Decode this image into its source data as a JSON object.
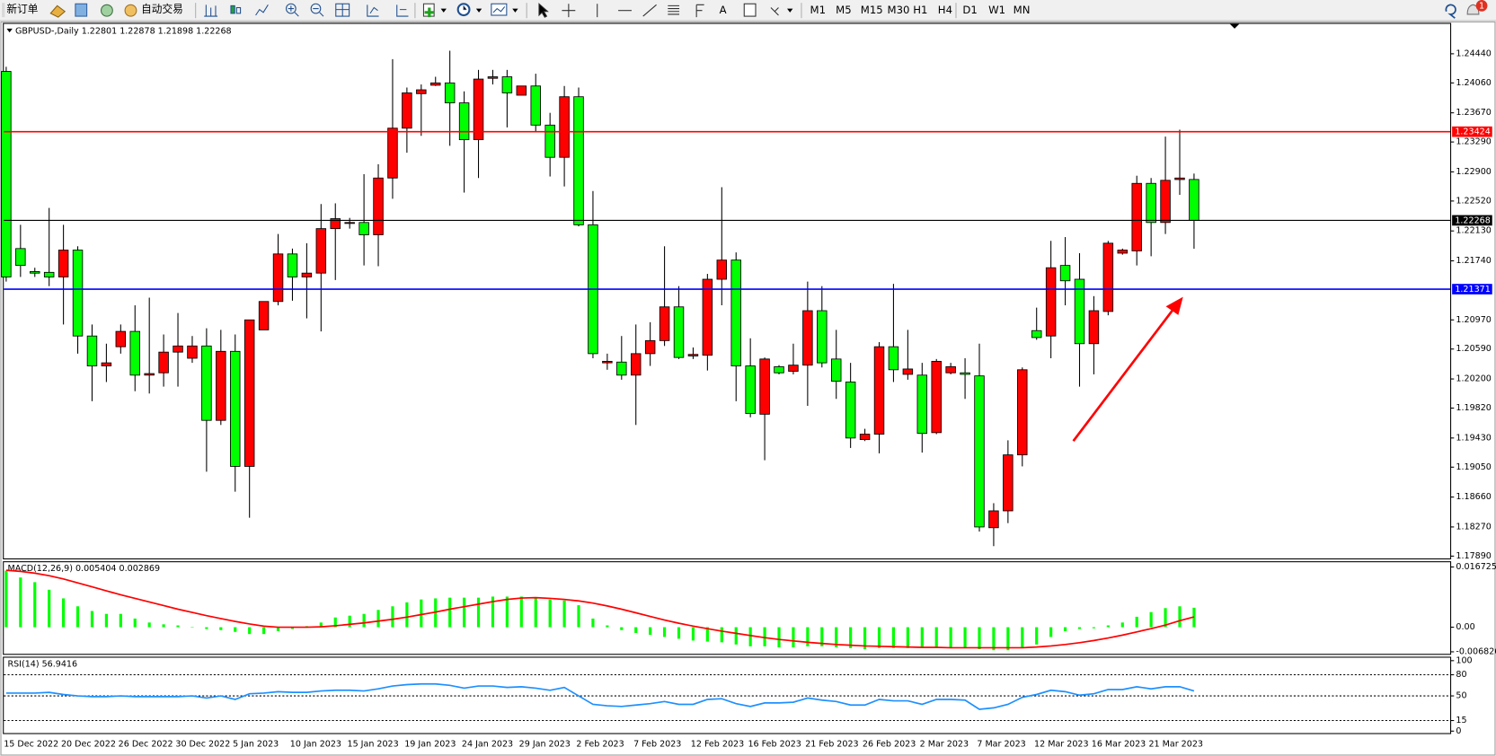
{
  "toolbar": {
    "new_order": "新订单",
    "auto_trading": "自动交易",
    "timeframes": [
      "M1",
      "M5",
      "M15",
      "M30",
      "H1",
      "H4",
      "D1",
      "W1",
      "MN"
    ],
    "notifications": "1"
  },
  "chart_data": [
    {
      "type": "candlestick",
      "title": "GBPUSD-,Daily  1.22801 1.22878 1.21898 1.22268",
      "categories": [
        "15 Dec 2022",
        null,
        null,
        null,
        "20 Dec 2022",
        null,
        null,
        null,
        "26 Dec 2022",
        null,
        null,
        null,
        "30 Dec 2022",
        null,
        null,
        null,
        "5 Jan 2023",
        null,
        null,
        null,
        "10 Jan 2023",
        null,
        null,
        null,
        "15 Jan 2023",
        null,
        null,
        null,
        "19 Jan 2023",
        null,
        null,
        null,
        "24 Jan 2023",
        null,
        null,
        null,
        "29 Jan 2023",
        null,
        null,
        null,
        "2 Feb 2023",
        null,
        null,
        null,
        "7 Feb 2023",
        null,
        null,
        null,
        "12 Feb 2023",
        null,
        null,
        null,
        "16 Feb 2023",
        null,
        null,
        null,
        "21 Feb 2023",
        null,
        null,
        null,
        "26 Feb 2023",
        null,
        null,
        null,
        "2 Mar 2023",
        null,
        null,
        null,
        "7 Mar 2023",
        null,
        null,
        null,
        "12 Mar 2023",
        null,
        null,
        null,
        "16 Mar 2023",
        null,
        null,
        null,
        "21 Mar 2023",
        null,
        null,
        null
      ],
      "open": [
        1.2421,
        1.219,
        1.216,
        1.2159,
        1.2153,
        1.2188,
        1.2076,
        1.2037,
        1.2062,
        1.2082,
        1.2025,
        1.2028,
        1.2055,
        1.2047,
        1.2063,
        1.1966,
        1.2056,
        1.1906,
        1.2084,
        1.2121,
        1.2183,
        1.2153,
        1.2158,
        1.2216,
        1.2223,
        1.2224,
        1.2208,
        1.2282,
        1.2347,
        1.2392,
        1.2403,
        1.2406,
        1.238,
        1.2332,
        1.2412,
        1.2414,
        1.239,
        1.2402,
        1.2351,
        1.2309,
        1.2388,
        1.2221,
        1.2041,
        1.2042,
        1.2025,
        1.2053,
        1.207,
        1.2114,
        1.205,
        1.2051,
        1.215,
        1.2175,
        1.2037,
        1.1974,
        1.2036,
        1.203,
        1.2038,
        1.2109,
        1.2046,
        1.2016,
        1.1941,
        1.1948,
        1.2062,
        1.2026,
        1.2025,
        1.195,
        1.2028,
        1.2028,
        1.2024,
        1.1826,
        1.1848,
        1.1921,
        1.2083,
        1.2076,
        1.2168,
        1.215,
        1.2066,
        1.2108,
        1.2184,
        1.2187,
        1.2275,
        1.2224,
        1.228,
        1.22801
      ],
      "high": [
        1.2427,
        1.2221,
        1.2165,
        1.2243,
        1.2221,
        1.2193,
        1.2091,
        1.2066,
        1.2091,
        1.2116,
        1.2126,
        1.2078,
        1.2106,
        1.2076,
        1.2086,
        1.2084,
        1.2078,
        1.2097,
        1.2121,
        1.2209,
        1.219,
        1.2197,
        1.2248,
        1.2249,
        1.223,
        1.2287,
        1.23,
        1.2437,
        1.24,
        1.2404,
        1.2414,
        1.2448,
        1.2395,
        1.2423,
        1.2423,
        1.2423,
        1.2402,
        1.2418,
        1.2367,
        1.2402,
        1.24,
        1.2265,
        1.2053,
        1.2076,
        1.2091,
        1.2094,
        1.2193,
        1.2141,
        1.2061,
        1.2157,
        1.227,
        1.2185,
        1.2073,
        1.2048,
        1.2038,
        1.2066,
        1.2147,
        1.2141,
        1.2084,
        1.2041,
        1.1955,
        1.2068,
        1.2144,
        1.2084,
        1.2041,
        1.2046,
        1.2041,
        1.2047,
        1.2066,
        1.1858,
        1.194,
        1.2035,
        1.2113,
        1.22,
        1.2205,
        1.2184,
        1.2128,
        1.22,
        1.219,
        1.2285,
        1.2282,
        1.2336,
        1.2345,
        1.22878
      ],
      "low": [
        1.2147,
        1.2153,
        1.2153,
        1.2141,
        1.2091,
        1.2053,
        1.1991,
        1.2016,
        1.2053,
        1.2004,
        1.2001,
        1.201,
        1.201,
        1.2041,
        1.1899,
        1.196,
        1.1873,
        1.1839,
        1.2084,
        1.2116,
        1.2122,
        1.2099,
        1.2082,
        1.2149,
        1.2216,
        1.2168,
        1.2167,
        1.2255,
        1.2315,
        1.2337,
        1.2402,
        1.2324,
        1.2263,
        1.2282,
        1.2404,
        1.2348,
        1.239,
        1.2343,
        1.2284,
        1.2271,
        1.2219,
        1.2047,
        1.2032,
        1.2019,
        1.196,
        1.2037,
        1.2063,
        1.2046,
        1.2046,
        1.2031,
        1.2116,
        1.1991,
        1.197,
        1.1914,
        1.2026,
        1.2026,
        1.1985,
        1.2035,
        1.1994,
        1.193,
        1.1939,
        1.1923,
        1.2016,
        1.2019,
        1.1924,
        1.1948,
        1.2026,
        1.1994,
        1.1821,
        1.1802,
        1.1832,
        1.1906,
        1.2071,
        1.2047,
        1.2116,
        1.201,
        1.2026,
        1.2103,
        1.2182,
        1.2168,
        1.218,
        1.2209,
        1.226,
        1.21898
      ],
      "close": [
        1.2153,
        1.2168,
        1.2158,
        1.2153,
        1.2188,
        1.2076,
        1.2037,
        1.2041,
        1.2082,
        1.2025,
        1.2027,
        1.2055,
        1.2063,
        1.2063,
        1.1966,
        1.2056,
        1.1906,
        1.2097,
        1.2121,
        1.2183,
        1.2153,
        1.2158,
        1.2216,
        1.2229,
        1.2224,
        1.2208,
        1.2282,
        1.2347,
        1.2393,
        1.2397,
        1.2406,
        1.238,
        1.2332,
        1.2411,
        1.2414,
        1.2393,
        1.2402,
        1.2351,
        1.2309,
        1.2388,
        1.2221,
        1.2053,
        1.2043,
        1.2025,
        1.2053,
        1.207,
        1.2114,
        1.2048,
        1.2052,
        1.215,
        1.2175,
        1.2037,
        1.1975,
        1.2046,
        1.2028,
        1.2038,
        1.2109,
        1.2041,
        1.2017,
        1.1943,
        1.1948,
        1.2062,
        1.2032,
        1.2033,
        1.1949,
        1.2043,
        1.2036,
        1.2026,
        1.1827,
        1.1848,
        1.1921,
        1.2032,
        1.2074,
        1.2165,
        1.2148,
        1.2066,
        1.2109,
        1.2197,
        1.2188,
        1.2275,
        1.2224,
        1.2279,
        1.2282,
        1.22268
      ],
      "bull_color": "#ff0000",
      "bear_color": "#00ff00",
      "wick_color": "#000000",
      "ylim": [
        1.1786,
        1.2483
      ],
      "yticks": [
        {
          "value": 1.2444,
          "label": "1.24440"
        },
        {
          "value": 1.2406,
          "label": "1.24060"
        },
        {
          "value": 1.2367,
          "label": "1.23670"
        },
        {
          "value": 1.2329,
          "label": "1.23290"
        },
        {
          "value": 1.229,
          "label": "1.22900"
        },
        {
          "value": 1.2252,
          "label": "1.22520"
        },
        {
          "value": 1.2213,
          "label": "1.22130"
        },
        {
          "value": 1.2174,
          "label": "1.21740"
        },
        {
          "value": 1.2097,
          "label": "1.20970"
        },
        {
          "value": 1.2059,
          "label": "1.20590"
        },
        {
          "value": 1.202,
          "label": "1.20200"
        },
        {
          "value": 1.1982,
          "label": "1.19820"
        },
        {
          "value": 1.1943,
          "label": "1.19430"
        },
        {
          "value": 1.1905,
          "label": "1.19050"
        },
        {
          "value": 1.1866,
          "label": "1.18660"
        },
        {
          "value": 1.1827,
          "label": "1.18270"
        },
        {
          "value": 1.1789,
          "label": "1.17890"
        }
      ],
      "hlines": [
        {
          "value": 1.23424,
          "color": "#ff0000"
        },
        {
          "value": 1.22268,
          "color": "#000000"
        },
        {
          "value": 1.21371,
          "color": "#0000ff"
        }
      ]
    },
    {
      "type": "bar",
      "title": "MACD(12,26,9) 0.005404 0.002869",
      "series": [
        {
          "color": "#00ff00",
          "values": [
            0.0157,
            0.0138,
            0.0125,
            0.0104,
            0.008,
            0.0058,
            0.0045,
            0.0037,
            0.0037,
            0.0024,
            0.0013,
            0.0008,
            0.0005,
            0,
            -0.0005,
            -0.0008,
            -0.0013,
            -0.0019,
            -0.0019,
            -0.0011,
            -0.0005,
            0.0003,
            0.0013,
            0.0027,
            0.0032,
            0.0037,
            0.0048,
            0.0058,
            0.0069,
            0.0077,
            0.008,
            0.0082,
            0.0082,
            0.0082,
            0.0085,
            0.0085,
            0.0085,
            0.0082,
            0.0077,
            0.0074,
            0.0061,
            0.0024,
            0.0005,
            -0.0008,
            -0.0016,
            -0.0021,
            -0.0027,
            -0.0032,
            -0.0037,
            -0.004,
            -0.0042,
            -0.0048,
            -0.0053,
            -0.0053,
            -0.0056,
            -0.0056,
            -0.0053,
            -0.0053,
            -0.0056,
            -0.0058,
            -0.0061,
            -0.0058,
            -0.0058,
            -0.0058,
            -0.0058,
            -0.0058,
            -0.0058,
            -0.0058,
            -0.0061,
            -0.0064,
            -0.0064,
            -0.0058,
            -0.0048,
            -0.0027,
            -0.0011,
            -0.0005,
            -0.0003,
            0.0005,
            0.0013,
            0.0029,
            0.0042,
            0.0053,
            0.0058,
            0.005404
          ]
        },
        {
          "type": "line",
          "color": "#ff0000",
          "values": [
            0.0158,
            0.0155,
            0.015,
            0.0143,
            0.0134,
            0.0123,
            0.0112,
            0.0101,
            0.009,
            0.008,
            0.007,
            0.006,
            0.005,
            0.0041,
            0.0032,
            0.0024,
            0.0016,
            0.0009,
            0.0003,
            0,
            0,
            0,
            0.0001,
            0.0004,
            0.0008,
            0.0012,
            0.0017,
            0.0022,
            0.0028,
            0.0035,
            0.0042,
            0.005,
            0.0057,
            0.0064,
            0.0071,
            0.0077,
            0.0081,
            0.0082,
            0.008,
            0.0077,
            0.0073,
            0.0067,
            0.0059,
            0.005,
            0.004,
            0.003,
            0.002,
            0.0011,
            0.0003,
            -0.0004,
            -0.0011,
            -0.0017,
            -0.0023,
            -0.0029,
            -0.0034,
            -0.0038,
            -0.0042,
            -0.0045,
            -0.0048,
            -0.005,
            -0.0052,
            -0.0053,
            -0.0054,
            -0.0055,
            -0.0056,
            -0.0056,
            -0.0057,
            -0.0057,
            -0.0057,
            -0.0057,
            -0.0057,
            -0.0057,
            -0.0055,
            -0.0052,
            -0.0048,
            -0.0043,
            -0.0037,
            -0.003,
            -0.0022,
            -0.0013,
            -0.0004,
            0.0006,
            0.0018,
            0.002869
          ]
        }
      ],
      "ylim": [
        -0.0074,
        0.0183
      ],
      "yticks": [
        0.016725,
        {
          "value": 0,
          "label": "0.00"
        },
        -0.006826
      ]
    },
    {
      "type": "line",
      "title": "RSI(14) 56.9416",
      "series": [
        {
          "color": "#1e90ff",
          "values": [
            54,
            54,
            54,
            55,
            52,
            50,
            49,
            49,
            50,
            49,
            49,
            49,
            49,
            50,
            47,
            50,
            45,
            53,
            54,
            56,
            55,
            55,
            57,
            58,
            58,
            57,
            60,
            64,
            66,
            67,
            67,
            65,
            61,
            64,
            64,
            62,
            63,
            61,
            58,
            62,
            50,
            38,
            36,
            35,
            37,
            39,
            42,
            38,
            38,
            45,
            46,
            39,
            35,
            40,
            40,
            41,
            47,
            44,
            42,
            37,
            37,
            45,
            43,
            43,
            38,
            45,
            45,
            44,
            31,
            33,
            38,
            48,
            52,
            58,
            56,
            51,
            53,
            59,
            59,
            63,
            60,
            63,
            63,
            56.9416
          ]
        }
      ],
      "ylim": [
        -2.8,
        105.6
      ],
      "yticks": [
        100,
        80,
        50,
        15,
        0
      ],
      "levels": [
        80,
        50,
        15
      ]
    }
  ]
}
